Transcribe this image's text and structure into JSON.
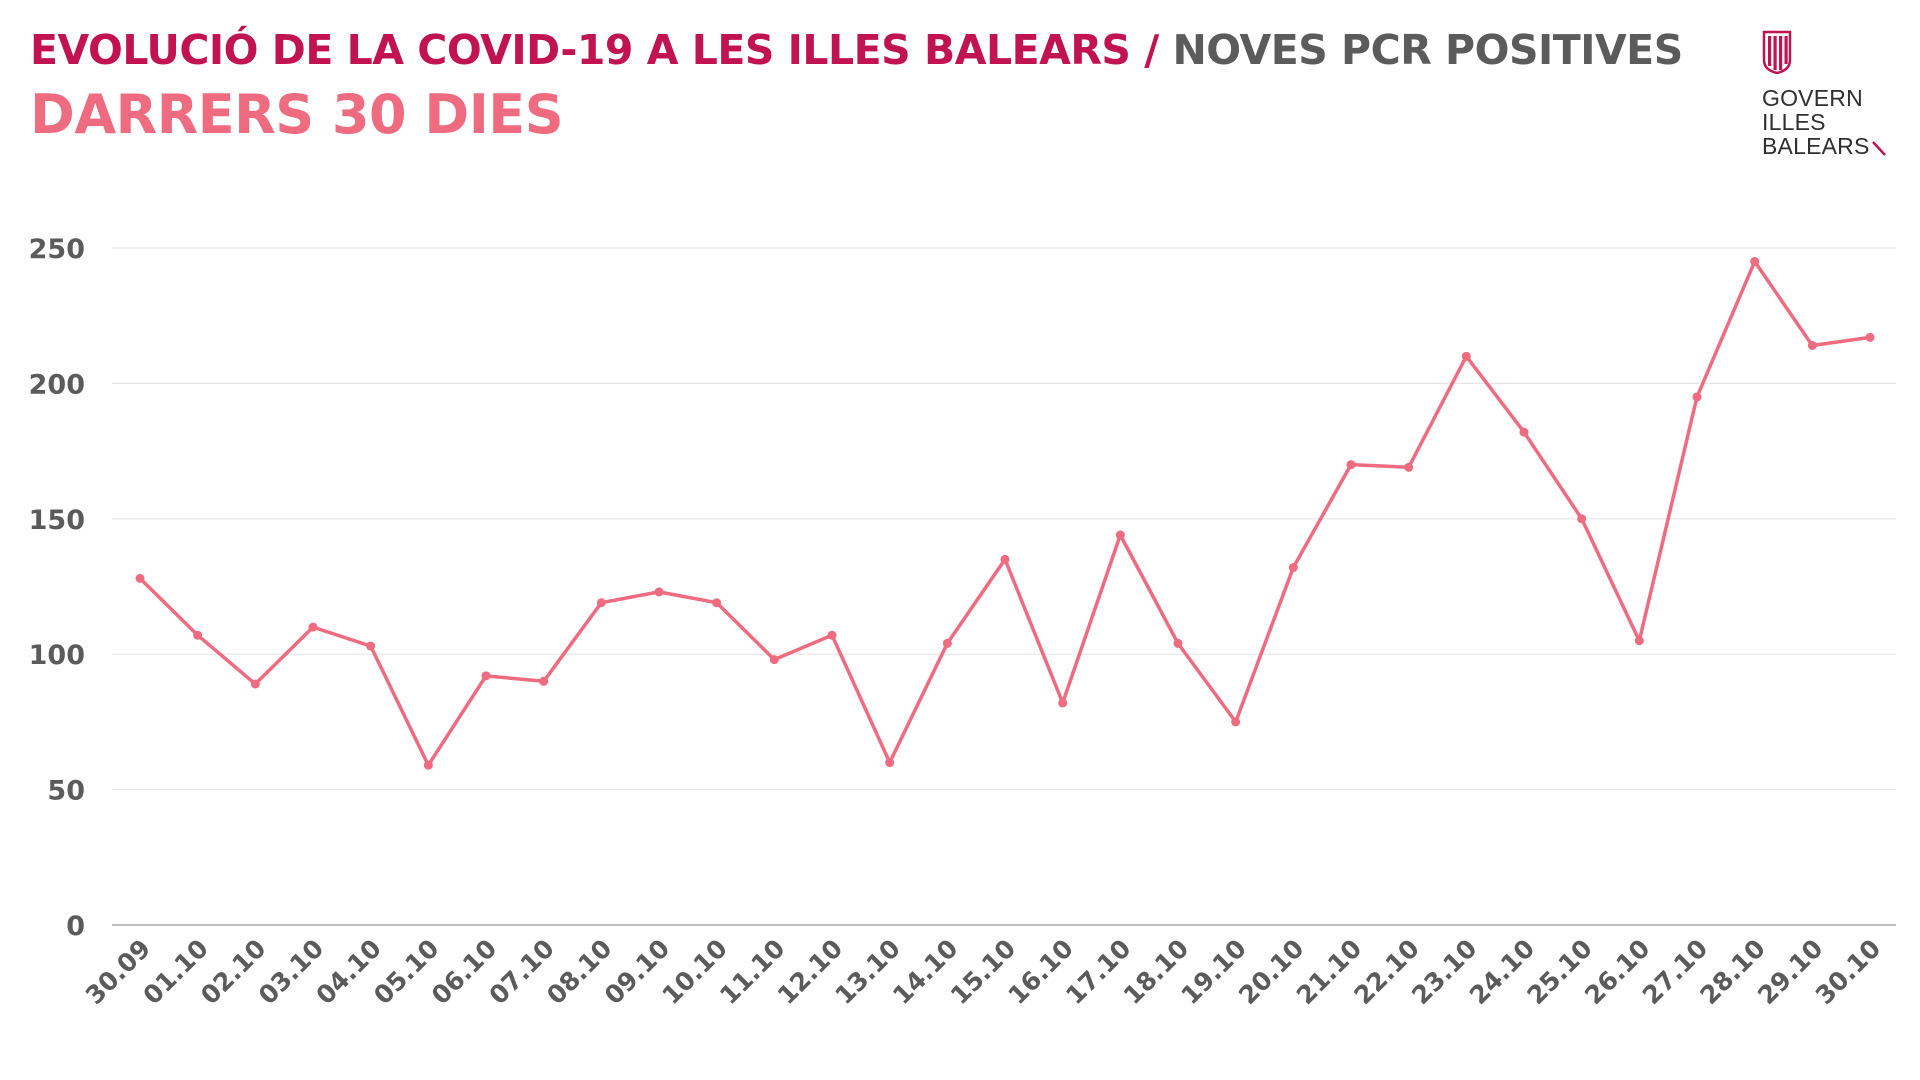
{
  "header": {
    "title_main": "EVOLUCIÓ DE LA COVID-19 A LES ILLES BALEARS",
    "title_sep": " / ",
    "title_sub": "NOVES PCR POSITIVES",
    "subtitle": "DARRERS 30 DIES"
  },
  "logo": {
    "line1": "GOVERN",
    "line2": "ILLES",
    "line3": "BALEARS"
  },
  "colors": {
    "title": "#c0134f",
    "subtitle": "#ef6b7f",
    "line": "#ef6b7f",
    "grid": "#e6e6e6",
    "axis_text": "#5b5b5b"
  },
  "chart_data": {
    "type": "line",
    "title": "",
    "xlabel": "",
    "ylabel": "",
    "ylim": [
      0,
      250
    ],
    "yticks": [
      0,
      50,
      100,
      150,
      200,
      250
    ],
    "grid": true,
    "x": [
      "30.09",
      "01.10",
      "02.10",
      "03.10",
      "04.10",
      "05.10",
      "06.10",
      "07.10",
      "08.10",
      "09.10",
      "10.10",
      "11.10",
      "12.10",
      "13.10",
      "14.10",
      "15.10",
      "16.10",
      "17.10",
      "18.10",
      "19.10",
      "20.10",
      "21.10",
      "22.10",
      "23.10",
      "24.10",
      "25.10",
      "26.10",
      "27.10",
      "28.10",
      "29.10",
      "30.10"
    ],
    "series": [
      {
        "values": [
          128,
          107,
          89,
          110,
          103,
          59,
          92,
          90,
          119,
          123,
          119,
          98,
          107,
          60,
          104,
          135,
          82,
          144,
          104,
          75,
          132,
          170,
          169,
          210,
          182,
          150,
          105,
          195,
          245,
          214,
          217
        ]
      }
    ]
  }
}
